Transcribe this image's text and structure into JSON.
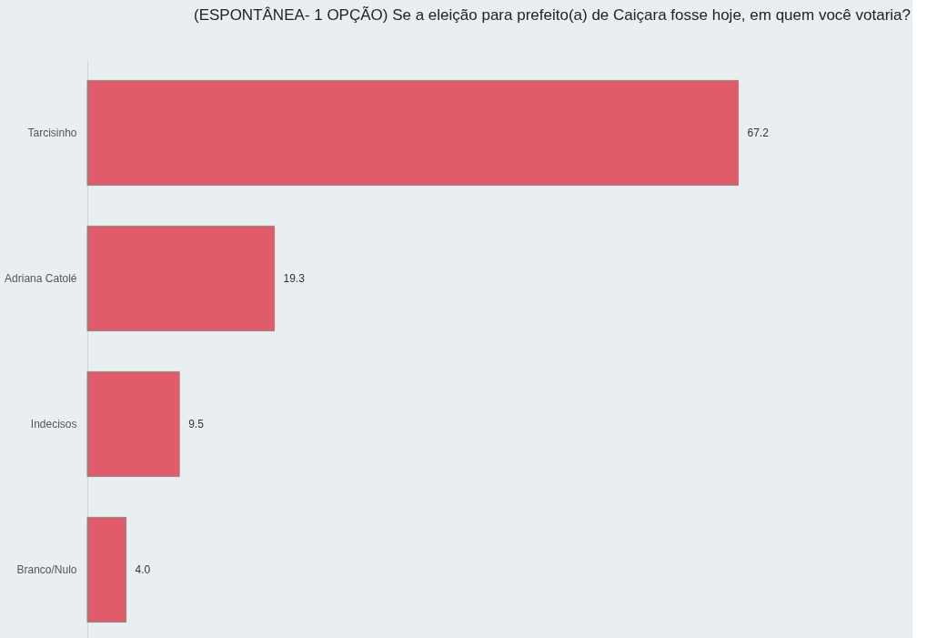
{
  "chart_data": {
    "type": "bar",
    "orientation": "horizontal",
    "title": "(ESPONTÂNEA- 1 OPÇÃO) Se a eleição para prefeito(a) de Caiçara fosse hoje, em quem você votaria?",
    "categories": [
      "Tarcisinho",
      "Adriana Catolé",
      "Indecisos",
      "Branco/Nulo"
    ],
    "values": [
      67.2,
      19.3,
      9.5,
      4.0
    ],
    "value_labels": [
      "67.2",
      "19.3",
      "9.5",
      "4.0"
    ],
    "color": "#e05c6a",
    "xlim": [
      0,
      85
    ],
    "tick_labels": "y",
    "grid": false
  }
}
